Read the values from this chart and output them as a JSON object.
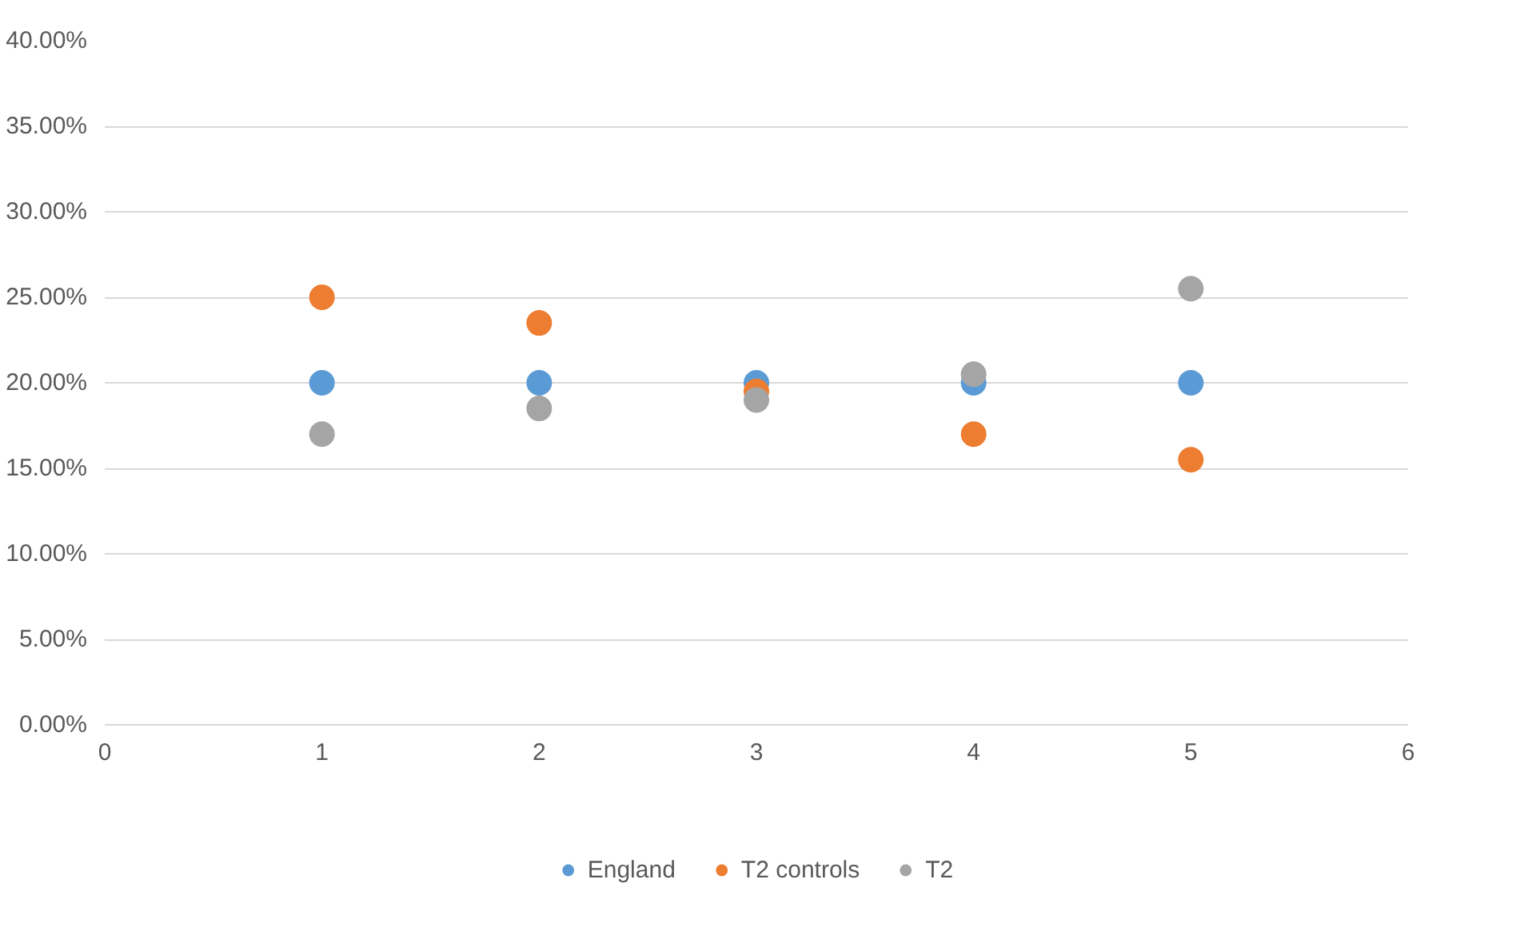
{
  "chart_data": {
    "type": "scatter",
    "x": [
      1,
      2,
      3,
      4,
      5
    ],
    "series": [
      {
        "name": "England",
        "color": "#5b9bd5",
        "values": [
          20.0,
          20.0,
          20.0,
          20.0,
          20.0
        ]
      },
      {
        "name": "T2 controls",
        "color": "#ed7d31",
        "values": [
          25.0,
          23.5,
          19.5,
          17.0,
          15.5
        ]
      },
      {
        "name": "T2",
        "color": "#a5a5a5",
        "values": [
          17.0,
          18.5,
          19.0,
          20.5,
          25.5
        ]
      }
    ],
    "xlim": [
      0,
      6
    ],
    "xticks": [
      0,
      1,
      2,
      3,
      4,
      5,
      6
    ],
    "ylim": [
      0,
      40
    ],
    "yticks": [
      {
        "value": 0,
        "label": "0.00%"
      },
      {
        "value": 5,
        "label": "5.00%"
      },
      {
        "value": 10,
        "label": "10.00%"
      },
      {
        "value": 15,
        "label": "15.00%"
      },
      {
        "value": 20,
        "label": "20.00%"
      },
      {
        "value": 25,
        "label": "25.00%"
      },
      {
        "value": 30,
        "label": "30.00%"
      },
      {
        "value": 35,
        "label": "35.00%"
      },
      {
        "value": 40,
        "label": "40.00%"
      }
    ],
    "grid": "y",
    "legend": "bottom",
    "marker": "circle"
  }
}
